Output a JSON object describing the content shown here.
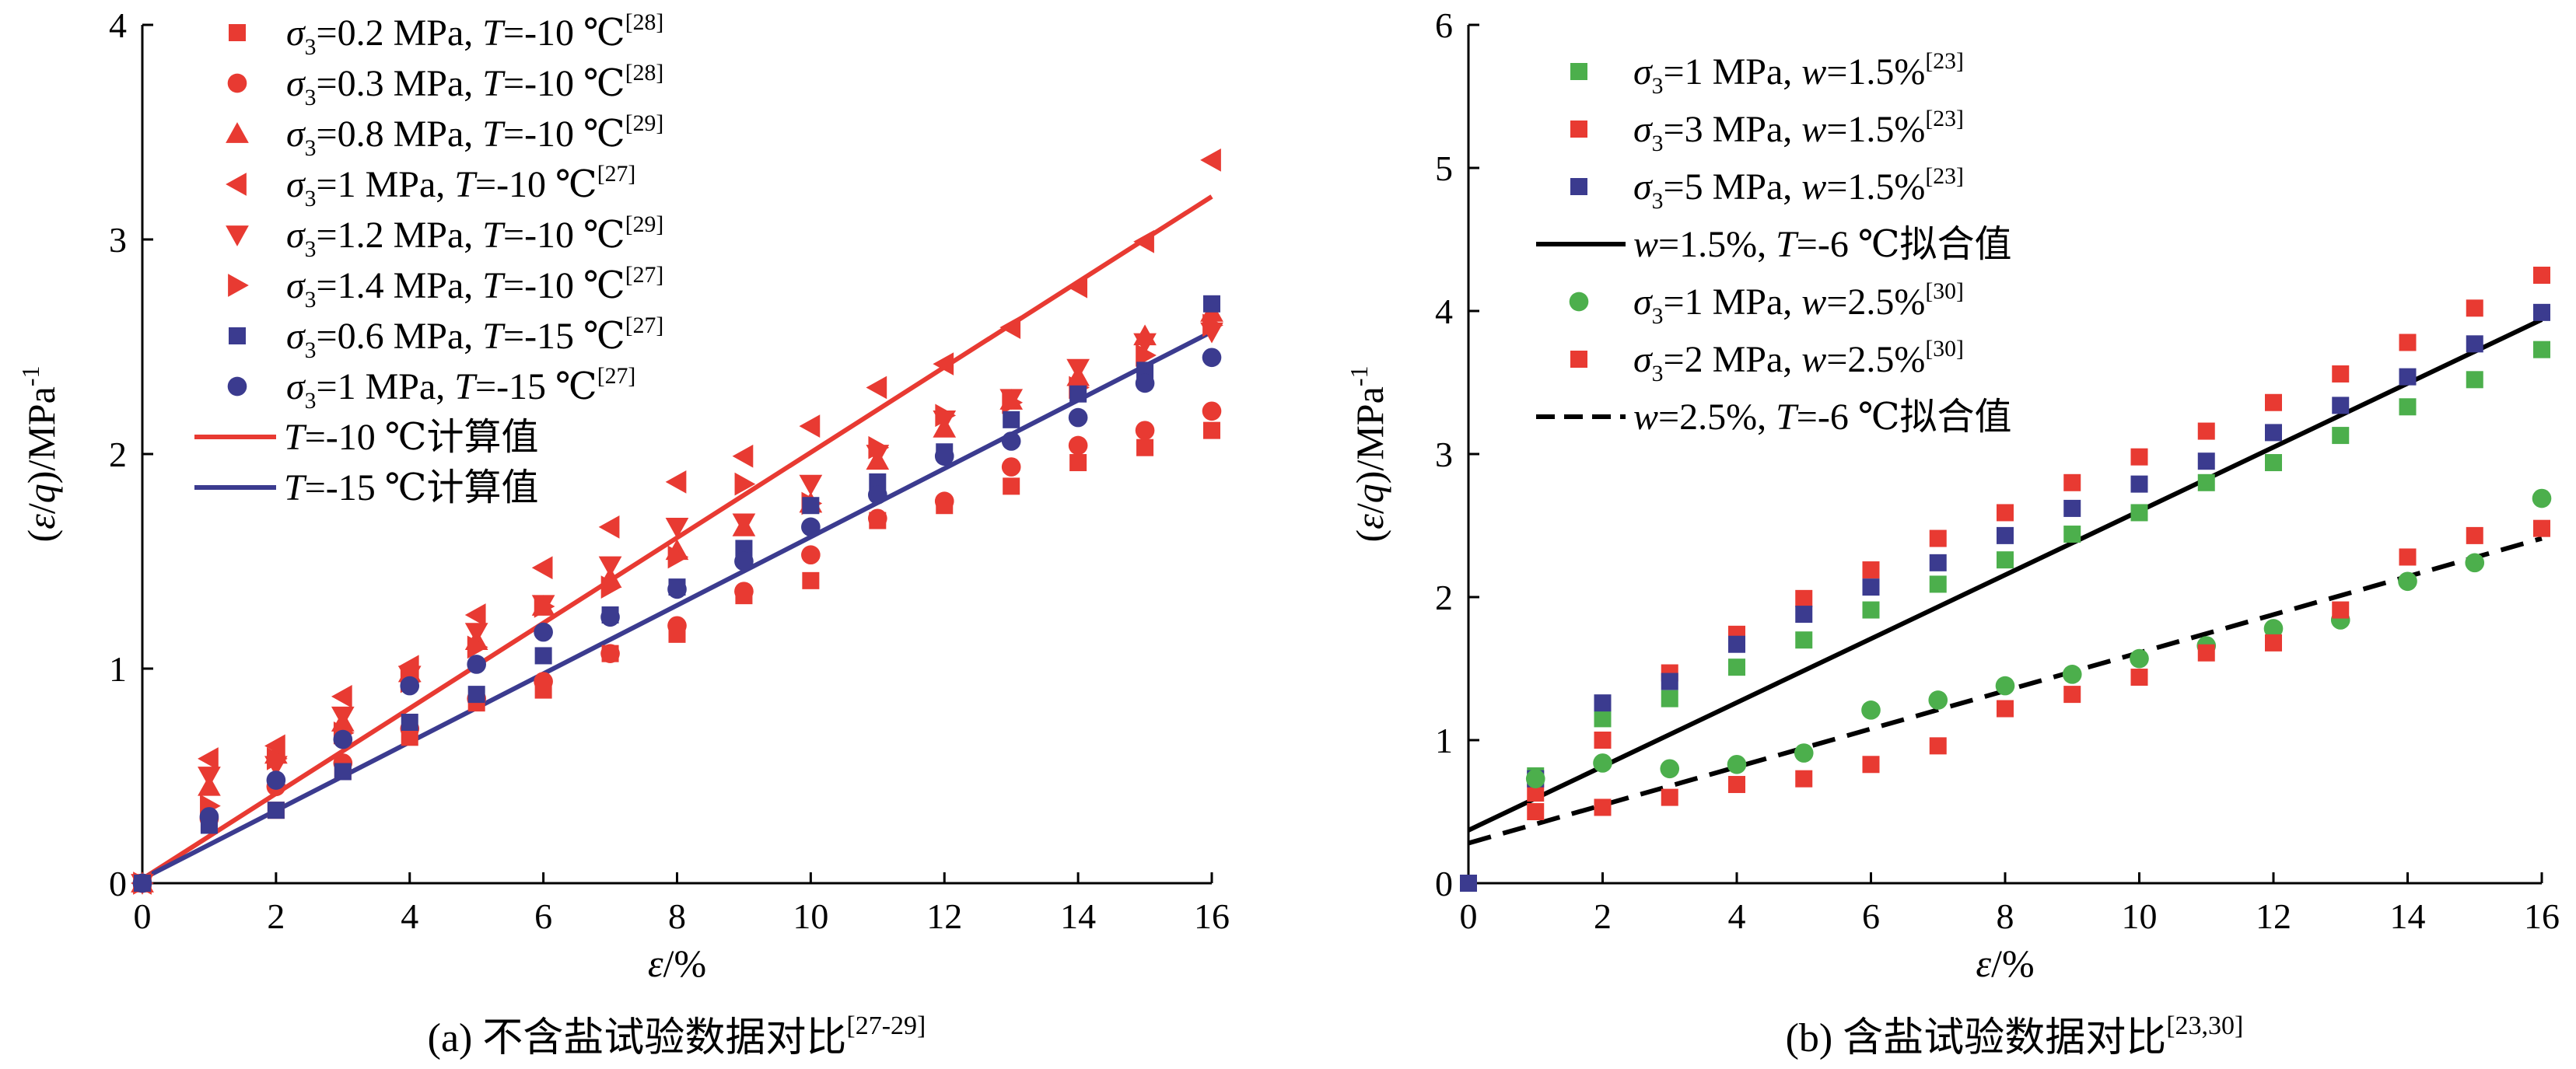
{
  "chart_data": [
    {
      "id": "a",
      "type": "scatter",
      "caption": "(a) 不含盐试验数据对比",
      "caption_sup": "[27-29]",
      "xlabel": "ε/%",
      "ylabel": "(ε/q)/MPa",
      "ylabel_sup": "-1",
      "xlim": [
        0,
        16
      ],
      "ylim": [
        0,
        4
      ],
      "xticks": [
        0,
        2,
        4,
        6,
        8,
        10,
        12,
        14,
        16
      ],
      "yticks": [
        0,
        1,
        2,
        3,
        4
      ],
      "legend_position": "top-left",
      "series": [
        {
          "key": "s1",
          "label": "σ3=0.2 MPa, T=-10 ℃",
          "ref": "[28]",
          "marker": "square",
          "color": "#e83a32",
          "x": [
            0,
            1,
            2,
            3,
            4,
            5,
            6,
            7,
            8,
            9,
            10,
            11,
            12,
            13,
            14,
            15,
            16
          ],
          "y": [
            0,
            0.28,
            0.34,
            0.52,
            0.68,
            0.84,
            0.9,
            1.07,
            1.16,
            1.34,
            1.41,
            1.69,
            1.76,
            1.85,
            1.96,
            2.03,
            2.11
          ]
        },
        {
          "key": "s2",
          "label": "σ3=0.3 MPa, T=-10 ℃",
          "ref": "[28]",
          "marker": "circle",
          "color": "#e83a32",
          "x": [
            0,
            1,
            2,
            3,
            4,
            5,
            6,
            7,
            8,
            9,
            10,
            11,
            12,
            13,
            14,
            15,
            16
          ],
          "y": [
            0,
            0.3,
            0.45,
            0.56,
            0.72,
            0.86,
            0.94,
            1.07,
            1.2,
            1.36,
            1.53,
            1.7,
            1.78,
            1.94,
            2.04,
            2.11,
            2.2
          ]
        },
        {
          "key": "s3",
          "label": "σ3=0.8 MPa, T=-10 ℃",
          "ref": "[29]",
          "marker": "triangle-up",
          "color": "#e83a32",
          "x": [
            0,
            1,
            2,
            3,
            4,
            5,
            6,
            7,
            8,
            9,
            10,
            11,
            12,
            13,
            14,
            15,
            16
          ],
          "y": [
            0,
            0.45,
            0.6,
            0.75,
            0.98,
            1.13,
            1.29,
            1.42,
            1.55,
            1.66,
            1.77,
            1.97,
            2.12,
            2.25,
            2.36,
            2.55,
            2.66
          ]
        },
        {
          "key": "s4",
          "label": "σ3=1 MPa, T=-10 ℃",
          "ref": "[27]",
          "marker": "triangle-left",
          "color": "#e83a32",
          "x": [
            0,
            1,
            2,
            3,
            4,
            5,
            6,
            7,
            8,
            9,
            10,
            11,
            12,
            13,
            14,
            15,
            16
          ],
          "y": [
            0,
            0.58,
            0.64,
            0.87,
            1.01,
            1.25,
            1.47,
            1.66,
            1.87,
            1.99,
            2.13,
            2.31,
            2.42,
            2.59,
            2.78,
            2.99,
            3.37
          ]
        },
        {
          "key": "s5",
          "label": "σ3=1.2 MPa, T=-10 ℃",
          "ref": "[29]",
          "marker": "triangle-down",
          "color": "#e83a32",
          "x": [
            0,
            1,
            2,
            3,
            4,
            5,
            6,
            7,
            8,
            9,
            10,
            11,
            12,
            13,
            14,
            15,
            16
          ],
          "y": [
            0,
            0.5,
            0.55,
            0.78,
            0.97,
            1.17,
            1.3,
            1.48,
            1.66,
            1.68,
            1.86,
            2.0,
            2.16,
            2.26,
            2.4,
            2.52,
            2.57
          ]
        },
        {
          "key": "s6",
          "label": "σ3=1.4 MPa, T=-10 ℃",
          "ref": "[27]",
          "marker": "triangle-right",
          "color": "#e83a32",
          "x": [
            0,
            1,
            2,
            3,
            4,
            5,
            6,
            7,
            8,
            9,
            10,
            11,
            12,
            13,
            14,
            15,
            16
          ],
          "y": [
            0,
            0.36,
            0.58,
            0.7,
            0.94,
            1.1,
            1.29,
            1.38,
            1.52,
            1.86,
            1.77,
            2.03,
            2.18,
            2.24,
            2.31,
            2.46,
            2.6
          ]
        },
        {
          "key": "s7",
          "label": "σ3=0.6 MPa, T=-15 ℃",
          "ref": "[27]",
          "marker": "square",
          "color": "#3b3b8f",
          "x": [
            0,
            1,
            2,
            3,
            4,
            5,
            6,
            7,
            8,
            9,
            10,
            11,
            12,
            13,
            14,
            15,
            16
          ],
          "y": [
            0,
            0.27,
            0.34,
            0.52,
            0.75,
            0.88,
            1.06,
            1.25,
            1.38,
            1.56,
            1.76,
            1.87,
            2.01,
            2.16,
            2.28,
            2.39,
            2.7
          ]
        },
        {
          "key": "s8",
          "label": "σ3=1 MPa, T=-15 ℃",
          "ref": "[27]",
          "marker": "circle",
          "color": "#3b3b8f",
          "x": [
            0,
            1,
            2,
            3,
            4,
            5,
            6,
            7,
            8,
            9,
            10,
            11,
            12,
            13,
            14,
            15,
            16
          ],
          "y": [
            0,
            0.31,
            0.48,
            0.67,
            0.92,
            1.02,
            1.17,
            1.24,
            1.37,
            1.5,
            1.66,
            1.81,
            1.99,
            2.06,
            2.17,
            2.33,
            2.45
          ]
        }
      ],
      "lines": [
        {
          "key": "l1",
          "label": "T=-10 ℃计算值",
          "color": "#e83a32",
          "dash": "solid",
          "x": [
            0,
            16
          ],
          "y": [
            0.02,
            3.2
          ]
        },
        {
          "key": "l2",
          "label": "T=-15 ℃计算值",
          "color": "#3b3b8f",
          "dash": "solid",
          "x": [
            0,
            16
          ],
          "y": [
            0.02,
            2.57
          ]
        }
      ]
    },
    {
      "id": "b",
      "type": "scatter",
      "caption": "(b) 含盐试验数据对比",
      "caption_sup": "[23,30]",
      "xlabel": "ε/%",
      "ylabel": "(ε/q)/MPa",
      "ylabel_sup": "-1",
      "xlim": [
        0,
        16
      ],
      "ylim": [
        0,
        6
      ],
      "xticks": [
        0,
        2,
        4,
        6,
        8,
        10,
        12,
        14,
        16
      ],
      "yticks": [
        0,
        1,
        2,
        3,
        4,
        5,
        6
      ],
      "legend_position": "top-left",
      "series": [
        {
          "key": "s1",
          "label": "σ3=1 MPa, w=1.5%",
          "ref": "[23]",
          "marker": "square",
          "color": "#4caf4c",
          "x": [
            0,
            1,
            2,
            3,
            4,
            5,
            6,
            7,
            8,
            9,
            10,
            11,
            12,
            13,
            14,
            15,
            16
          ],
          "y": [
            0,
            0.75,
            1.15,
            1.29,
            1.51,
            1.7,
            1.91,
            2.09,
            2.26,
            2.44,
            2.59,
            2.8,
            2.94,
            3.13,
            3.33,
            3.52,
            3.73
          ]
        },
        {
          "key": "s2",
          "label": "σ3=3 MPa, w=1.5%",
          "ref": "[23]",
          "marker": "square",
          "color": "#e83a32",
          "x": [
            0,
            1,
            2,
            3,
            4,
            5,
            6,
            7,
            8,
            9,
            10,
            11,
            12,
            13,
            14,
            15,
            16
          ],
          "y": [
            0,
            0.63,
            1.0,
            1.47,
            1.74,
            1.99,
            2.19,
            2.41,
            2.59,
            2.8,
            2.98,
            3.16,
            3.36,
            3.56,
            3.78,
            4.02,
            4.25
          ]
        },
        {
          "key": "s3",
          "label": "σ3=5 MPa, w=1.5%",
          "ref": "[23]",
          "marker": "square",
          "color": "#3b3b8f",
          "x": [
            0,
            1,
            2,
            3,
            4,
            5,
            6,
            7,
            8,
            9,
            10,
            11,
            12,
            13,
            14,
            15,
            16
          ],
          "y": [
            0,
            0.73,
            1.26,
            1.41,
            1.67,
            1.88,
            2.07,
            2.24,
            2.43,
            2.62,
            2.79,
            2.95,
            3.15,
            3.34,
            3.54,
            3.77,
            3.99
          ]
        },
        {
          "key": "s4",
          "label": "σ3=1 MPa, w=2.5%",
          "ref": "[30]",
          "marker": "circle",
          "color": "#4caf4c",
          "x": [
            1,
            2,
            3,
            4,
            5,
            6,
            7,
            8,
            9,
            10,
            11,
            12,
            13,
            14,
            15,
            16
          ],
          "y": [
            0.73,
            0.84,
            0.8,
            0.83,
            0.91,
            1.21,
            1.28,
            1.38,
            1.46,
            1.57,
            1.66,
            1.78,
            1.84,
            2.11,
            2.24,
            2.69
          ]
        },
        {
          "key": "s5",
          "label": "σ3=2 MPa, w=2.5%",
          "ref": "[30]",
          "marker": "square",
          "color": "#e83a32",
          "x": [
            1,
            2,
            3,
            4,
            5,
            6,
            7,
            8,
            9,
            10,
            11,
            12,
            13,
            14,
            15,
            16
          ],
          "y": [
            0.5,
            0.53,
            0.6,
            0.69,
            0.73,
            0.83,
            0.96,
            1.22,
            1.32,
            1.44,
            1.61,
            1.68,
            1.91,
            2.28,
            2.43,
            2.48
          ]
        }
      ],
      "lines": [
        {
          "key": "l1",
          "label": "w=1.5%, T=-6 ℃拟合值",
          "color": "#000000",
          "dash": "solid",
          "x": [
            0,
            16
          ],
          "y": [
            0.37,
            3.94
          ]
        },
        {
          "key": "l2",
          "label": "w=2.5%, T=-6 ℃拟合值",
          "color": "#000000",
          "dash": "dashed",
          "x": [
            0,
            16
          ],
          "y": [
            0.28,
            2.41
          ]
        }
      ]
    }
  ]
}
